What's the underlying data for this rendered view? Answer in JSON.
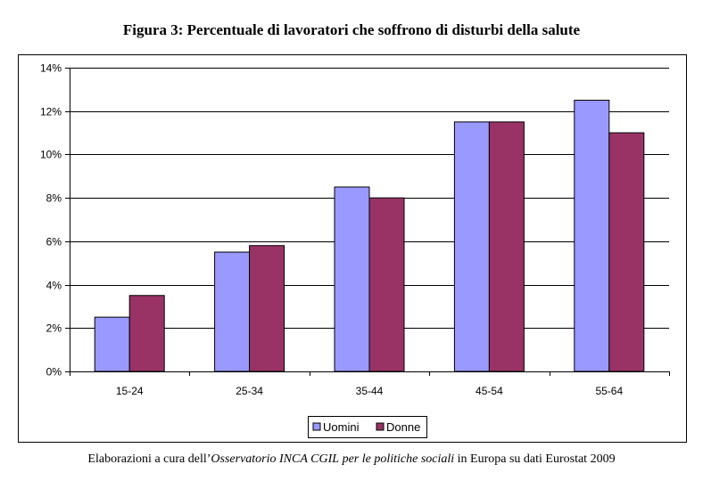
{
  "figure": {
    "title": "Figura 3: Percentuale di lavoratori che soffrono di disturbi della salute",
    "caption": {
      "part1": "Elaborazioni a cura dell’",
      "part2": "Osservatorio INCA CGIL",
      "part3": " ",
      "part4": "per le politiche sociali",
      "part5": " in Europa su dati Eurostat 2009"
    }
  },
  "chart_data": {
    "type": "bar",
    "title": "Figura 3: Percentuale di lavoratori che soffrono di disturbi della salute",
    "xlabel": "",
    "ylabel": "",
    "categories": [
      "15-24",
      "25-34",
      "35-44",
      "45-54",
      "55-64"
    ],
    "series": [
      {
        "name": "Uomini",
        "color": "#9999ff",
        "values": [
          2.5,
          5.5,
          8.5,
          11.5,
          12.5
        ]
      },
      {
        "name": "Donne",
        "color": "#993366",
        "values": [
          3.5,
          5.8,
          8.0,
          11.5,
          11.0
        ]
      }
    ],
    "ylim": [
      0,
      14
    ],
    "yticks": [
      0,
      2,
      4,
      6,
      8,
      10,
      12,
      14
    ],
    "ytick_labels": [
      "0%",
      "2%",
      "4%",
      "6%",
      "8%",
      "10%",
      "12%",
      "14%"
    ],
    "grid": true,
    "legend": "bottom"
  }
}
